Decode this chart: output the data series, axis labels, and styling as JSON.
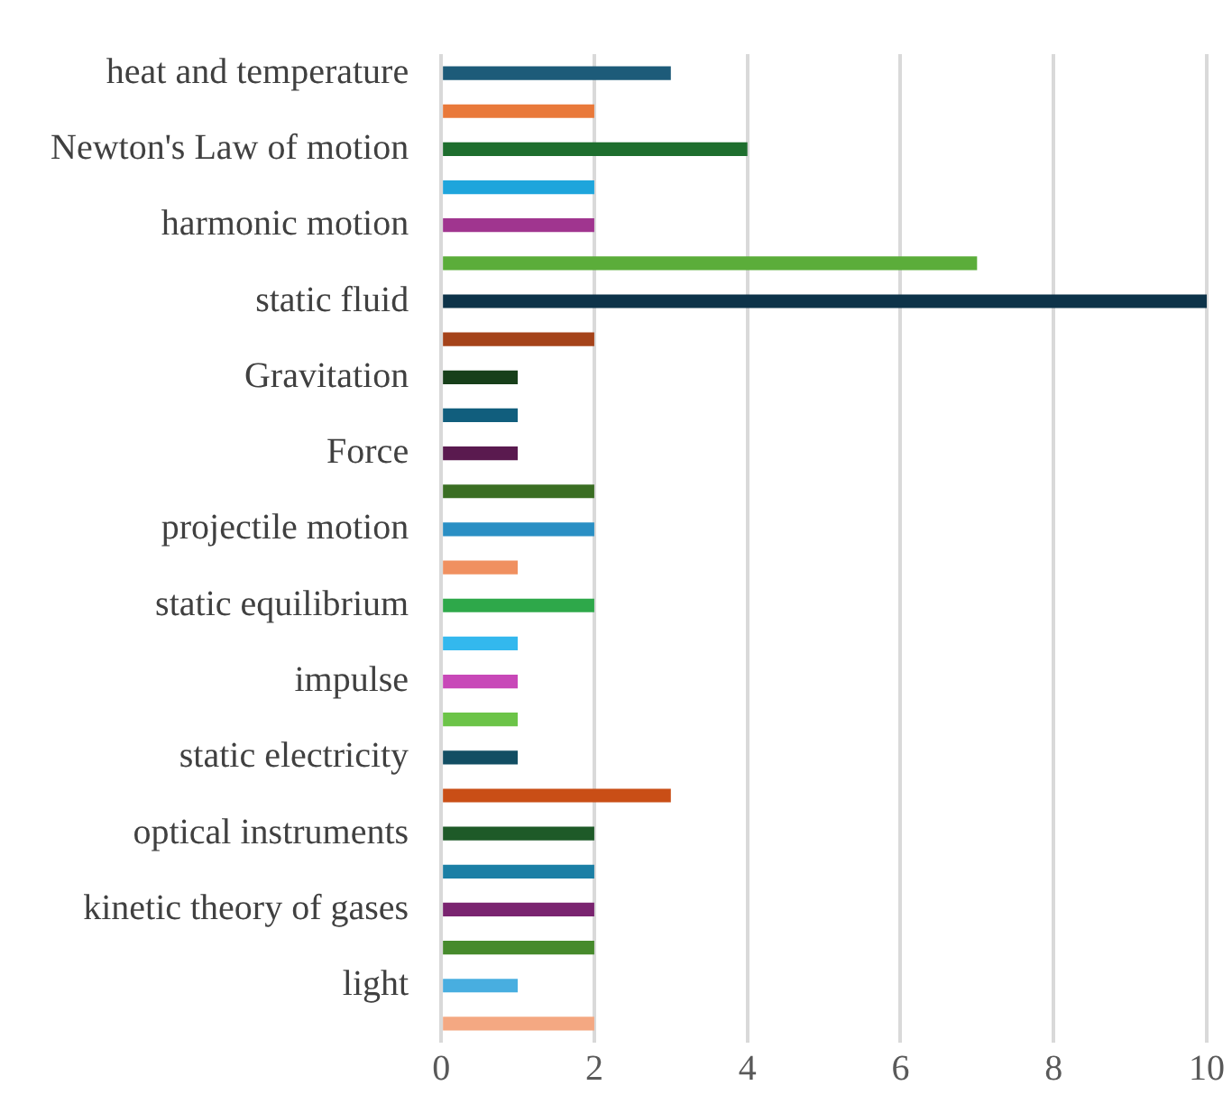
{
  "chart_data": {
    "type": "bar",
    "orientation": "horizontal",
    "grid": "x",
    "legend": false,
    "categories": [
      "heat and temperature",
      null,
      "Newton's Law of motion",
      null,
      "harmonic motion",
      null,
      "static fluid",
      null,
      "Gravitation",
      null,
      "Force",
      null,
      "projectile motion",
      null,
      "static equilibrium",
      null,
      "impulse",
      null,
      "static electricity",
      null,
      "optical instruments",
      null,
      "kinetic theory of gases",
      null,
      "light",
      null
    ],
    "values": [
      3,
      2,
      4,
      2,
      2,
      7,
      10,
      2,
      1,
      1,
      1,
      2,
      2,
      1,
      2,
      1,
      1,
      1,
      1,
      3,
      2,
      2,
      2,
      2,
      1,
      2
    ],
    "colors": [
      "#1d5b79",
      "#e9793a",
      "#1e6e2e",
      "#1ea5dc",
      "#a0358f",
      "#5bad3a",
      "#0d3349",
      "#a5431a",
      "#173f1a",
      "#115e7d",
      "#5a1a4f",
      "#3a6e23",
      "#2a8fc4",
      "#f09060",
      "#2ea84a",
      "#33b8ee",
      "#c848b8",
      "#6cc448",
      "#124e63",
      "#c94e16",
      "#1e5a28",
      "#1b7fa5",
      "#7a2470",
      "#468a2c",
      "#48aee0",
      "#f4a882"
    ],
    "xlim": [
      0,
      10
    ],
    "xticks": [
      0,
      2,
      4,
      6,
      8,
      10
    ]
  }
}
